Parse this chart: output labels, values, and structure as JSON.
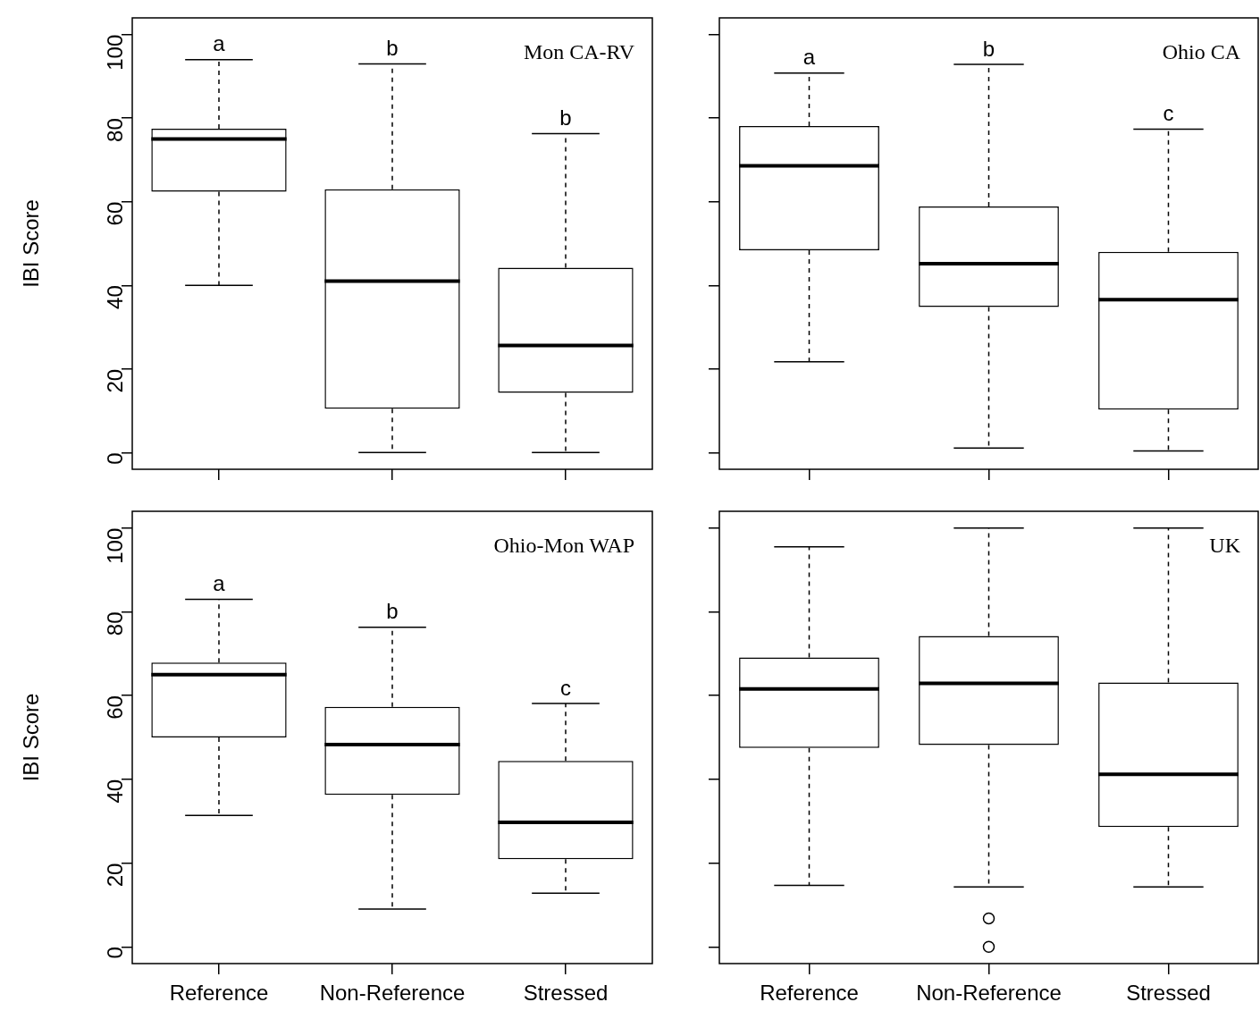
{
  "chart_data": [
    {
      "type": "box",
      "title": "Mon CA-RV",
      "ylabel": "IBI Score",
      "categories": [
        "Reference",
        "Non-Reference",
        "Stressed"
      ],
      "ylim": [
        -4,
        104
      ],
      "yticks": [
        0,
        20,
        40,
        60,
        80,
        100
      ],
      "tick_labels": "y",
      "boxes": [
        {
          "low": 40,
          "q1": 62.4,
          "median": 75,
          "q3": 77.5,
          "high": 94
        },
        {
          "low": 0,
          "q1": 10.5,
          "median": 41,
          "q3": 63,
          "high": 93
        },
        {
          "low": 0,
          "q1": 14.3,
          "median": 25.6,
          "q3": 44.2,
          "high": 76.3
        }
      ],
      "annotations": [
        {
          "text": "a",
          "x": "Reference",
          "y": 94
        },
        {
          "text": "b",
          "x": "Non-Reference",
          "y": 93
        },
        {
          "text": "b",
          "x": "Stressed",
          "y": 76.3
        }
      ]
    },
    {
      "type": "box",
      "title": "Ohio CA",
      "categories": [
        "Reference",
        "Non-Reference",
        "Stressed"
      ],
      "ylim": [
        -4,
        104
      ],
      "yticks": [
        0,
        20,
        40,
        60,
        80,
        100
      ],
      "tick_labels": false,
      "boxes": [
        {
          "low": 21.7,
          "q1": 48.4,
          "median": 68.6,
          "q3": 78.1,
          "high": 90.8
        },
        {
          "low": 1.1,
          "q1": 34.8,
          "median": 45.2,
          "q3": 58.9,
          "high": 92.9
        },
        {
          "low": 0.4,
          "q1": 10.3,
          "median": 36.6,
          "q3": 48,
          "high": 77.4
        }
      ],
      "annotations": [
        {
          "text": "a",
          "x": "Reference",
          "y": 90.8
        },
        {
          "text": "b",
          "x": "Non-Reference",
          "y": 92.9
        },
        {
          "text": "c",
          "x": "Stressed",
          "y": 77.4
        }
      ]
    },
    {
      "type": "box",
      "title": "Ohio-Mon WAP",
      "ylabel": "IBI Score",
      "categories": [
        "Reference",
        "Non-Reference",
        "Stressed"
      ],
      "ylim": [
        -4,
        104
      ],
      "yticks": [
        0,
        20,
        40,
        60,
        80,
        100
      ],
      "boxes": [
        {
          "low": 31.4,
          "q1": 50,
          "median": 65,
          "q3": 67.9,
          "high": 83
        },
        {
          "low": 9,
          "q1": 36.3,
          "median": 48.3,
          "q3": 57.3,
          "high": 76.3
        },
        {
          "low": 12.8,
          "q1": 20.9,
          "median": 29.7,
          "q3": 44.4,
          "high": 58.1
        }
      ],
      "annotations": [
        {
          "text": "a",
          "x": "Reference",
          "y": 83
        },
        {
          "text": "b",
          "x": "Non-Reference",
          "y": 76.3
        },
        {
          "text": "c",
          "x": "Stressed",
          "y": 58.1
        }
      ]
    },
    {
      "type": "box",
      "title": "UK",
      "categories": [
        "Reference",
        "Non-Reference",
        "Stressed"
      ],
      "ylim": [
        -4,
        104
      ],
      "yticks": [
        0,
        20,
        40,
        60,
        80,
        100
      ],
      "tick_labels": "x",
      "boxes": [
        {
          "low": 14.7,
          "q1": 47.5,
          "median": 61.6,
          "q3": 69.1,
          "high": 95.5
        },
        {
          "low": 14.3,
          "q1": 48.2,
          "median": 62.9,
          "q3": 74.2,
          "high": 100,
          "outliers": [
            6.8,
            0
          ]
        },
        {
          "low": 14.3,
          "q1": 28.6,
          "median": 41.2,
          "q3": 63.1,
          "high": 100
        }
      ]
    }
  ]
}
